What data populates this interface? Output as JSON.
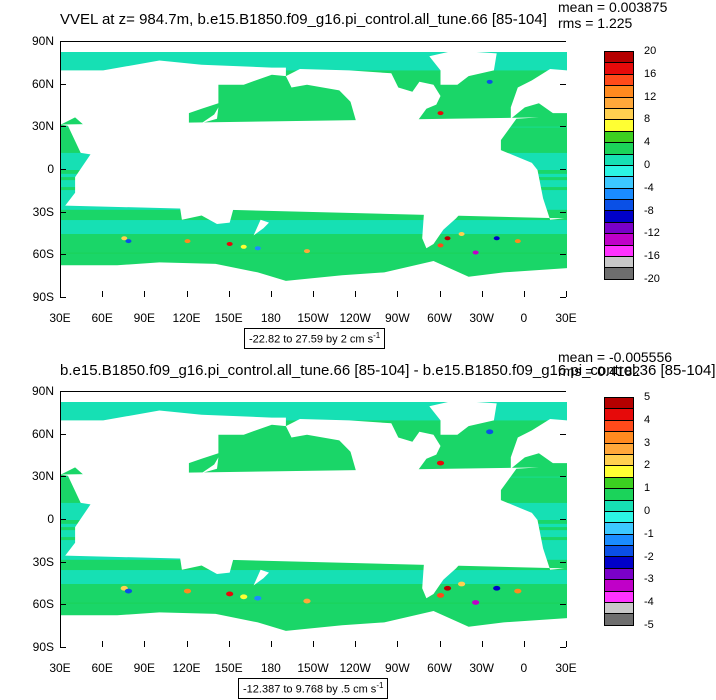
{
  "panels": [
    {
      "title": "VVEL at z= 984.7m, b.e15.B1850.f09_g16.pi_control.all_tune.66 [85-104]",
      "mean": "mean = 0.003875",
      "rms": "rms = 1.225",
      "range_text": "-22.82 to 27.59 by 2 cm s",
      "range_exp": "-1",
      "colorbar_labels": [
        "20",
        "16",
        "12",
        "8",
        "4",
        "0",
        "-4",
        "-8",
        "-12",
        "-16",
        "-20"
      ],
      "colorbar_colors": [
        "#b50000",
        "#e60a0a",
        "#ff4a1a",
        "#ff8a1f",
        "#ffa83a",
        "#ffd050",
        "#ffff33",
        "#3cd020",
        "#1bd35a",
        "#16e0b4",
        "#2cf5e4",
        "#3cc8ff",
        "#1a8cff",
        "#0a50e6",
        "#0000c8",
        "#7a00c8",
        "#c000c8",
        "#ff33ff",
        "#c8c8c8",
        "#6e6e6e"
      ]
    },
    {
      "title": "b.e15.B1850.f09_g16.pi_control.all_tune.66 [85-104] - b.e15.B1850.f09_g16.pi_control.36 [85-104]",
      "mean": "mean = -0.005556",
      "rms": "rms = 0.4182",
      "range_text": "-12.387 to 9.768 by .5 cm s",
      "range_exp": "-1",
      "colorbar_labels": [
        "5",
        "4",
        "3",
        "2",
        "1",
        "0",
        "-1",
        "-2",
        "-3",
        "-4",
        "-5"
      ],
      "colorbar_colors": [
        "#b50000",
        "#e60a0a",
        "#ff4a1a",
        "#ff8a1f",
        "#ffa83a",
        "#ffd050",
        "#ffff33",
        "#3cd020",
        "#1bd35a",
        "#16e0b4",
        "#2cf5e4",
        "#3cc8ff",
        "#1a8cff",
        "#0a50e6",
        "#0000c8",
        "#7a00c8",
        "#c000c8",
        "#ff33ff",
        "#c8c8c8",
        "#6e6e6e"
      ]
    }
  ],
  "lat_labels": [
    "90N",
    "60N",
    "30N",
    "0",
    "30S",
    "60S",
    "90S"
  ],
  "lon_labels": [
    "30E",
    "60E",
    "90E",
    "120E",
    "150E",
    "180",
    "150W",
    "120W",
    "90W",
    "60W",
    "30W",
    "0",
    "30E"
  ],
  "colors": {
    "ocean_main": "#16e0b4",
    "ocean_alt": "#1bd35a",
    "land": "#ffffff"
  }
}
